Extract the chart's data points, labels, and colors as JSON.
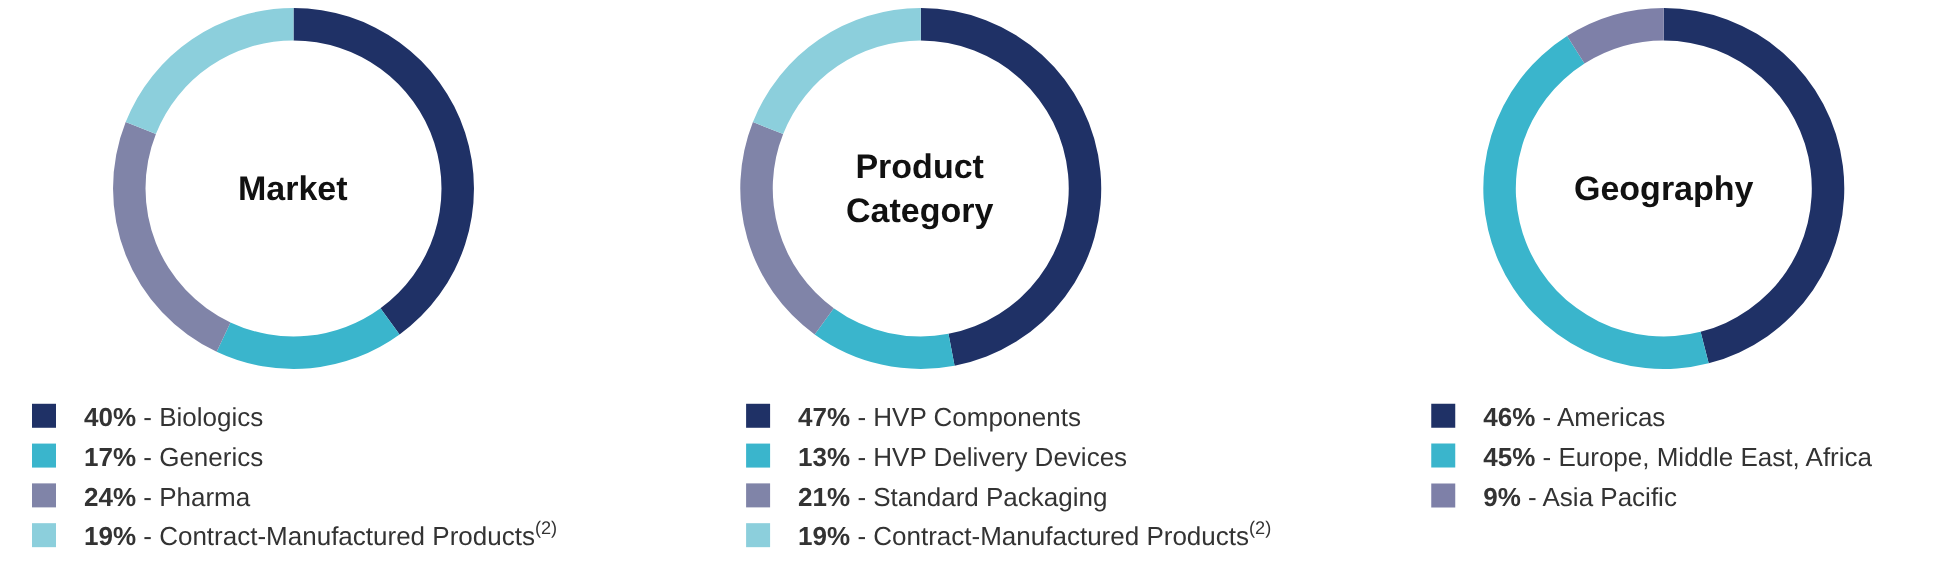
{
  "chart_data": [
    {
      "type": "donut",
      "title": "Market",
      "legend": "bottom",
      "categories": [
        "40% - Biologics",
        "17% - Generics",
        "24% - Pharma",
        "19% - Contract-Manufactured Products$^{(2)}$"
      ],
      "values": [
        40,
        17,
        24,
        19
      ],
      "colors": [
        "#1f3166",
        "#3ab5cc",
        "#8084a8",
        "#8ccfdc"
      ]
    },
    {
      "type": "donut",
      "title": "Product\nCategory",
      "legend": "bottom",
      "categories": [
        "47% - HVP Components",
        "13% - HVP Delivery Devices",
        "21% - Standard Packaging",
        "19% - Contract-Manufactured Products$^{(2)}$"
      ],
      "values": [
        47,
        13,
        21,
        19
      ],
      "colors": [
        "#1f3166",
        "#3ab5cc",
        "#8084a8",
        "#8ccfdc"
      ]
    },
    {
      "type": "donut",
      "title": "Geography",
      "legend": "bottom",
      "categories": [
        "46% - Americas",
        "45% - Europe, Middle East, Africa",
        "9% - Asia Pacific"
      ],
      "values": [
        46,
        45,
        9
      ],
      "colors": [
        "#1f3166",
        "#3ab5cc",
        "#7e80a8"
      ]
    }
  ]
}
